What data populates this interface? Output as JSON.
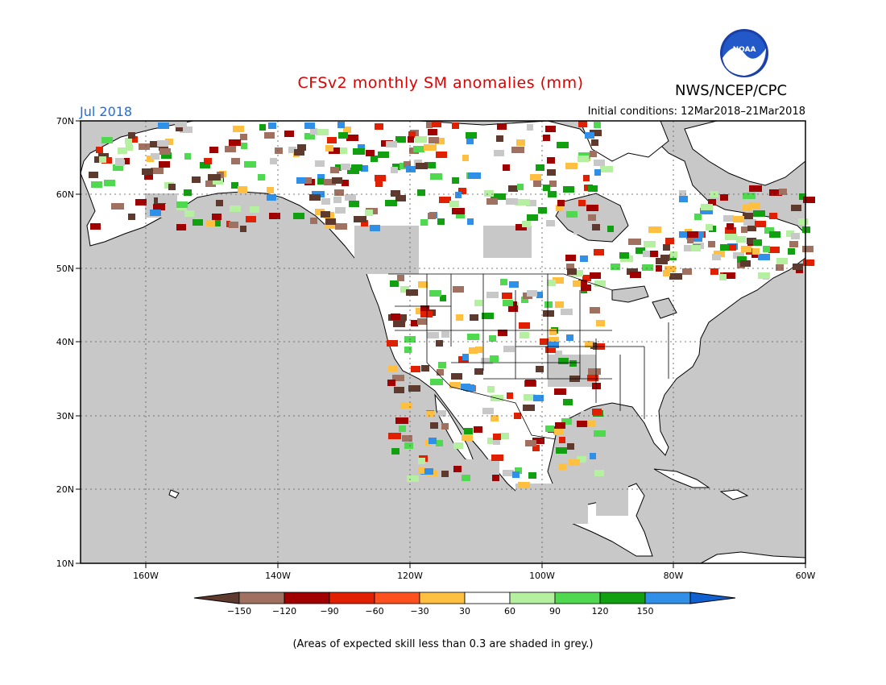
{
  "title": "CFSv2 monthly SM anomalies (mm)",
  "organization": "NWS/NCEP/CPC",
  "forecast_month": "Jul 2018",
  "initial_conditions": "Initial conditions: 12Mar2018–21Mar2018",
  "note": "(Areas of expected skill less than 0.3 are shaded in grey.)",
  "logo": {
    "text": "NOAA",
    "icon": "noaa-logo"
  },
  "map": {
    "lat_labels": [
      "70N",
      "60N",
      "50N",
      "40N",
      "30N",
      "20N",
      "10N"
    ],
    "lon_labels": [
      "160W",
      "140W",
      "120W",
      "100W",
      "80W",
      "60W"
    ],
    "extent": {
      "lon": [
        -170,
        -60
      ],
      "lat": [
        10,
        70
      ]
    }
  },
  "colorbar": {
    "labels": [
      "−150",
      "−120",
      "−90",
      "−60",
      "−30",
      "30",
      "60",
      "90",
      "120",
      "150"
    ],
    "colors": [
      "#5e3a2e",
      "#a07060",
      "#a00000",
      "#e02000",
      "#ff5020",
      "#ffbf40",
      "#ffffff",
      "#b4f0a0",
      "#50d850",
      "#10a010",
      "#3090e8",
      "#1060d0"
    ]
  },
  "colors": {
    "skill_grey": "#c8c8c8",
    "no_anomaly": "#ffffff"
  }
}
